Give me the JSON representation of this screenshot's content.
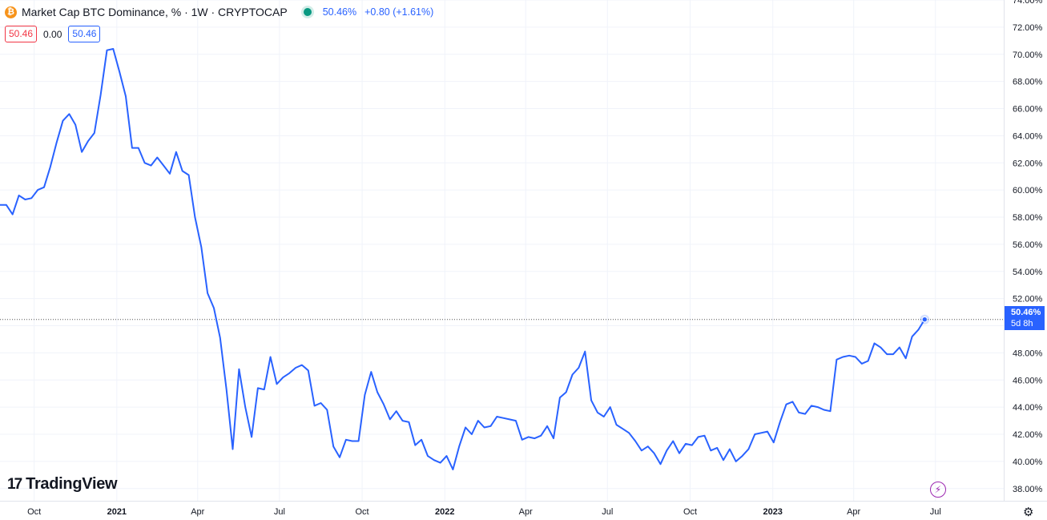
{
  "header": {
    "title": "Market Cap BTC Dominance, % · 1W · CRYPTOCAP",
    "btc_glyph": "₿",
    "last_value": "50.46%",
    "change": "+0.80 (+1.61%)",
    "live_indicator_color": "#089981"
  },
  "ohlc": {
    "left_box": "50.46",
    "middle": "0.00",
    "right_box": "50.46"
  },
  "logo": {
    "mark": "17",
    "text": "TradingView"
  },
  "price_tag": {
    "value": "50.46%",
    "countdown": "5d 8h"
  },
  "icons": {
    "bolt": "lightning-icon",
    "settings": "gear-icon"
  },
  "colors": {
    "line": "#2962ff",
    "grid": "#f0f3fa",
    "up": "#089981",
    "down": "#f23645"
  },
  "chart_data": {
    "type": "line",
    "title": "Market Cap BTC Dominance, % · 1W · CRYPTOCAP",
    "ylabel": "",
    "xlabel": "",
    "ylim": [
      37.1,
      74.0
    ],
    "y_ticks": [
      "38.00%",
      "40.00%",
      "42.00%",
      "44.00%",
      "46.00%",
      "48.00%",
      "50.00%",
      "52.00%",
      "54.00%",
      "56.00%",
      "58.00%",
      "60.00%",
      "62.00%",
      "64.00%",
      "66.00%",
      "68.00%",
      "70.00%",
      "72.00%",
      "74.00%"
    ],
    "y_tick_values": [
      38,
      40,
      42,
      44,
      46,
      48,
      50,
      52,
      54,
      56,
      58,
      60,
      62,
      64,
      66,
      68,
      70,
      72,
      74
    ],
    "x_ticks": [
      {
        "label": "Oct",
        "date": "2020-10-01",
        "bold": false
      },
      {
        "label": "2021",
        "date": "2021-01-01",
        "bold": true
      },
      {
        "label": "Apr",
        "date": "2021-04-01",
        "bold": false
      },
      {
        "label": "Jul",
        "date": "2021-07-01",
        "bold": false
      },
      {
        "label": "Oct",
        "date": "2021-10-01",
        "bold": false
      },
      {
        "label": "2022",
        "date": "2022-01-01",
        "bold": true
      },
      {
        "label": "Apr",
        "date": "2022-04-01",
        "bold": false
      },
      {
        "label": "Jul",
        "date": "2022-07-01",
        "bold": false
      },
      {
        "label": "Oct",
        "date": "2022-10-01",
        "bold": false
      },
      {
        "label": "2023",
        "date": "2023-01-01",
        "bold": true
      },
      {
        "label": "Apr",
        "date": "2023-04-01",
        "bold": false
      },
      {
        "label": "Jul",
        "date": "2023-07-01",
        "bold": false
      }
    ],
    "x_range": [
      "2020-08-24",
      "2023-09-15"
    ],
    "current_value": 50.46,
    "grid": true,
    "series": [
      {
        "values": [
          [
            "2020-08-24",
            58.9
          ],
          [
            "2020-08-31",
            58.9
          ],
          [
            "2020-09-07",
            58.2
          ],
          [
            "2020-09-14",
            59.6
          ],
          [
            "2020-09-21",
            59.3
          ],
          [
            "2020-09-28",
            59.4
          ],
          [
            "2020-10-05",
            60.0
          ],
          [
            "2020-10-12",
            60.2
          ],
          [
            "2020-10-19",
            61.7
          ],
          [
            "2020-10-26",
            63.5
          ],
          [
            "2020-11-02",
            65.1
          ],
          [
            "2020-11-09",
            65.6
          ],
          [
            "2020-11-16",
            64.8
          ],
          [
            "2020-11-23",
            62.8
          ],
          [
            "2020-11-30",
            63.6
          ],
          [
            "2020-12-07",
            64.2
          ],
          [
            "2020-12-14",
            67.0
          ],
          [
            "2020-12-21",
            70.3
          ],
          [
            "2020-12-28",
            70.4
          ],
          [
            "2021-01-04",
            68.7
          ],
          [
            "2021-01-11",
            66.9
          ],
          [
            "2021-01-18",
            63.1
          ],
          [
            "2021-01-25",
            63.1
          ],
          [
            "2021-02-01",
            62.0
          ],
          [
            "2021-02-08",
            61.8
          ],
          [
            "2021-02-15",
            62.4
          ],
          [
            "2021-02-22",
            61.8
          ],
          [
            "2021-03-01",
            61.2
          ],
          [
            "2021-03-08",
            62.8
          ],
          [
            "2021-03-15",
            61.4
          ],
          [
            "2021-03-22",
            61.1
          ],
          [
            "2021-03-29",
            58.0
          ],
          [
            "2021-04-05",
            55.8
          ],
          [
            "2021-04-12",
            52.4
          ],
          [
            "2021-04-19",
            51.3
          ],
          [
            "2021-04-26",
            49.1
          ],
          [
            "2021-05-03",
            45.3
          ],
          [
            "2021-05-10",
            40.9
          ],
          [
            "2021-05-17",
            46.8
          ],
          [
            "2021-05-24",
            44.0
          ],
          [
            "2021-05-31",
            41.8
          ],
          [
            "2021-06-07",
            45.4
          ],
          [
            "2021-06-14",
            45.3
          ],
          [
            "2021-06-21",
            47.7
          ],
          [
            "2021-06-28",
            45.7
          ],
          [
            "2021-07-05",
            46.2
          ],
          [
            "2021-07-12",
            46.5
          ],
          [
            "2021-07-19",
            46.9
          ],
          [
            "2021-07-26",
            47.1
          ],
          [
            "2021-08-02",
            46.7
          ],
          [
            "2021-08-09",
            44.1
          ],
          [
            "2021-08-16",
            44.3
          ],
          [
            "2021-08-23",
            43.8
          ],
          [
            "2021-08-30",
            41.1
          ],
          [
            "2021-09-06",
            40.3
          ],
          [
            "2021-09-13",
            41.6
          ],
          [
            "2021-09-20",
            41.5
          ],
          [
            "2021-09-27",
            41.5
          ],
          [
            "2021-10-04",
            44.9
          ],
          [
            "2021-10-11",
            46.6
          ],
          [
            "2021-10-18",
            45.1
          ],
          [
            "2021-10-25",
            44.2
          ],
          [
            "2021-11-01",
            43.1
          ],
          [
            "2021-11-08",
            43.7
          ],
          [
            "2021-11-15",
            43.0
          ],
          [
            "2021-11-22",
            42.9
          ],
          [
            "2021-11-29",
            41.2
          ],
          [
            "2021-12-06",
            41.6
          ],
          [
            "2021-12-13",
            40.4
          ],
          [
            "2021-12-20",
            40.1
          ],
          [
            "2021-12-27",
            39.9
          ],
          [
            "2022-01-03",
            40.4
          ],
          [
            "2022-01-10",
            39.4
          ],
          [
            "2022-01-17",
            41.1
          ],
          [
            "2022-01-24",
            42.5
          ],
          [
            "2022-01-31",
            42.0
          ],
          [
            "2022-02-07",
            43.0
          ],
          [
            "2022-02-14",
            42.5
          ],
          [
            "2022-02-21",
            42.6
          ],
          [
            "2022-02-28",
            43.3
          ],
          [
            "2022-03-07",
            43.2
          ],
          [
            "2022-03-14",
            43.1
          ],
          [
            "2022-03-21",
            43.0
          ],
          [
            "2022-03-28",
            41.6
          ],
          [
            "2022-04-04",
            41.8
          ],
          [
            "2022-04-11",
            41.7
          ],
          [
            "2022-04-18",
            41.9
          ],
          [
            "2022-04-25",
            42.6
          ],
          [
            "2022-05-02",
            41.7
          ],
          [
            "2022-05-09",
            44.7
          ],
          [
            "2022-05-16",
            45.1
          ],
          [
            "2022-05-23",
            46.4
          ],
          [
            "2022-05-30",
            46.9
          ],
          [
            "2022-06-06",
            48.1
          ],
          [
            "2022-06-13",
            44.5
          ],
          [
            "2022-06-20",
            43.6
          ],
          [
            "2022-06-27",
            43.3
          ],
          [
            "2022-07-04",
            44.0
          ],
          [
            "2022-07-11",
            42.7
          ],
          [
            "2022-07-18",
            42.4
          ],
          [
            "2022-07-25",
            42.1
          ],
          [
            "2022-08-01",
            41.5
          ],
          [
            "2022-08-08",
            40.8
          ],
          [
            "2022-08-15",
            41.1
          ],
          [
            "2022-08-22",
            40.6
          ],
          [
            "2022-08-29",
            39.8
          ],
          [
            "2022-09-05",
            40.8
          ],
          [
            "2022-09-12",
            41.5
          ],
          [
            "2022-09-19",
            40.6
          ],
          [
            "2022-09-26",
            41.3
          ],
          [
            "2022-10-03",
            41.2
          ],
          [
            "2022-10-10",
            41.8
          ],
          [
            "2022-10-17",
            41.9
          ],
          [
            "2022-10-24",
            40.8
          ],
          [
            "2022-10-31",
            41.0
          ],
          [
            "2022-11-07",
            40.1
          ],
          [
            "2022-11-14",
            40.9
          ],
          [
            "2022-11-21",
            40.0
          ],
          [
            "2022-11-28",
            40.4
          ],
          [
            "2022-12-05",
            40.9
          ],
          [
            "2022-12-12",
            42.0
          ],
          [
            "2022-12-19",
            42.1
          ],
          [
            "2022-12-26",
            42.2
          ],
          [
            "2023-01-02",
            41.4
          ],
          [
            "2023-01-09",
            42.9
          ],
          [
            "2023-01-16",
            44.2
          ],
          [
            "2023-01-23",
            44.4
          ],
          [
            "2023-01-30",
            43.6
          ],
          [
            "2023-02-06",
            43.5
          ],
          [
            "2023-02-13",
            44.1
          ],
          [
            "2023-02-20",
            44.0
          ],
          [
            "2023-02-27",
            43.8
          ],
          [
            "2023-03-06",
            43.7
          ],
          [
            "2023-03-13",
            47.5
          ],
          [
            "2023-03-20",
            47.7
          ],
          [
            "2023-03-27",
            47.8
          ],
          [
            "2023-04-03",
            47.7
          ],
          [
            "2023-04-10",
            47.2
          ],
          [
            "2023-04-17",
            47.4
          ],
          [
            "2023-04-24",
            48.7
          ],
          [
            "2023-05-01",
            48.4
          ],
          [
            "2023-05-08",
            47.9
          ],
          [
            "2023-05-15",
            47.9
          ],
          [
            "2023-05-22",
            48.4
          ],
          [
            "2023-05-29",
            47.6
          ],
          [
            "2023-06-05",
            49.2
          ],
          [
            "2023-06-12",
            49.7
          ],
          [
            "2023-06-19",
            50.46
          ]
        ]
      }
    ]
  }
}
